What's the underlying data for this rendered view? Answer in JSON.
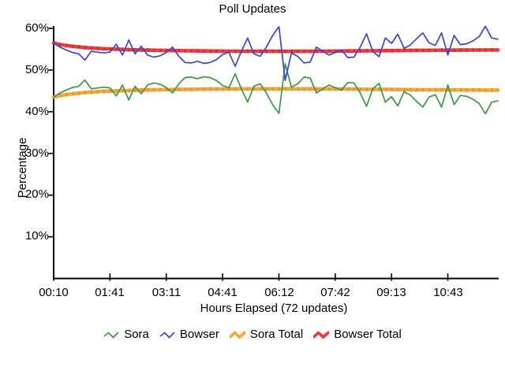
{
  "title": "Poll Updates",
  "x_axis": {
    "label": "Hours Elapsed (72 updates)"
  },
  "y_axis": {
    "label": "Percentage"
  },
  "chart_data": {
    "type": "line",
    "title": "Poll Updates",
    "xlabel": "Hours Elapsed (72 updates)",
    "ylabel": "Percentage",
    "updates": 72,
    "ylim": [
      0,
      60
    ],
    "grid": false,
    "legend_position": "bottom",
    "axis_color": "#000000",
    "y_ticks": [
      10,
      20,
      30,
      40,
      50,
      60
    ],
    "y_tick_labels": [
      "10%",
      "20%",
      "30%",
      "40%",
      "50%",
      "60%"
    ],
    "x_tick_updates": [
      1,
      10,
      19,
      28,
      37,
      46,
      55,
      64
    ],
    "x_tick_labels": [
      "00:10",
      "01:41",
      "03:11",
      "04:41",
      "06:12",
      "07:42",
      "09:13",
      "10:43"
    ],
    "series": [
      {
        "name": "Sora",
        "color": "#3f9745",
        "width": 1.7,
        "values": [
          43.5,
          44.5,
          45.2,
          45.8,
          46.1,
          47.6,
          45.5,
          45.7,
          45.9,
          45.7,
          43.8,
          46.4,
          42.8,
          46.1,
          44.3,
          46.4,
          46.9,
          46.6,
          45.8,
          44.5,
          46.7,
          48.2,
          48.3,
          47.9,
          48.4,
          48.2,
          47.5,
          46.3,
          45.7,
          49.1,
          45.5,
          42.3,
          46.1,
          46.7,
          44.5,
          41.7,
          39.6,
          51.5,
          45.9,
          46.7,
          48.3,
          48.1,
          44.5,
          45.5,
          46.4,
          45.8,
          45.2,
          47.0,
          46.9,
          44.5,
          41.3,
          45.5,
          46.8,
          42.3,
          43.6,
          41.4,
          44.8,
          44.0,
          42.5,
          41.1,
          43.5,
          44.1,
          41.1,
          46.4,
          41.7,
          43.9,
          43.7,
          43.0,
          42.0,
          39.5,
          42.3,
          42.6
        ]
      },
      {
        "name": "Bowser",
        "color": "#4143cf",
        "width": 1.7,
        "values": [
          56.5,
          55.5,
          54.8,
          54.2,
          53.9,
          52.4,
          54.5,
          54.3,
          54.1,
          54.3,
          56.2,
          53.6,
          57.2,
          53.9,
          55.7,
          53.6,
          53.1,
          53.4,
          54.2,
          55.5,
          53.3,
          51.8,
          51.7,
          52.1,
          51.6,
          51.8,
          52.5,
          53.7,
          54.3,
          50.9,
          54.5,
          57.7,
          53.9,
          53.3,
          55.5,
          58.3,
          60.4,
          47.5,
          54.1,
          53.3,
          51.7,
          51.9,
          55.5,
          54.5,
          53.6,
          54.2,
          54.8,
          53.0,
          53.1,
          55.5,
          58.7,
          54.5,
          53.2,
          57.7,
          56.4,
          58.6,
          55.2,
          56.0,
          57.5,
          58.9,
          56.5,
          55.9,
          58.9,
          53.6,
          58.3,
          56.1,
          56.3,
          57.0,
          58.0,
          60.5,
          57.7,
          57.4
        ]
      },
      {
        "name": "Sora Total",
        "color": "#f2a93c",
        "marker_color": "#e2922a",
        "width": 4.6,
        "values": [
          43.5,
          43.9,
          44.1,
          44.3,
          44.45,
          44.6,
          44.7,
          44.8,
          44.9,
          44.95,
          45.0,
          45.05,
          45.1,
          45.15,
          45.2,
          45.22,
          45.25,
          45.28,
          45.3,
          45.32,
          45.34,
          45.36,
          45.38,
          45.4,
          45.42,
          45.44,
          45.45,
          45.46,
          45.47,
          45.48,
          45.49,
          45.5,
          45.5,
          45.5,
          45.5,
          45.5,
          45.5,
          45.52,
          45.5,
          45.5,
          45.5,
          45.5,
          45.48,
          45.47,
          45.46,
          45.45,
          45.44,
          45.43,
          45.42,
          45.4,
          45.38,
          45.37,
          45.36,
          45.35,
          45.34,
          45.32,
          45.3,
          45.29,
          45.28,
          45.27,
          45.26,
          45.25,
          45.24,
          45.24,
          45.23,
          45.22,
          45.21,
          45.2,
          45.2,
          45.19,
          45.18,
          45.18
        ]
      },
      {
        "name": "Bowser Total",
        "color": "#e84040",
        "marker_color": "#d02c2c",
        "width": 4.6,
        "values": [
          56.5,
          56.1,
          55.9,
          55.7,
          55.55,
          55.4,
          55.3,
          55.2,
          55.1,
          55.05,
          55.0,
          54.95,
          54.9,
          54.85,
          54.8,
          54.78,
          54.75,
          54.72,
          54.7,
          54.68,
          54.66,
          54.64,
          54.62,
          54.6,
          54.58,
          54.56,
          54.55,
          54.54,
          54.53,
          54.52,
          54.51,
          54.5,
          54.5,
          54.5,
          54.5,
          54.5,
          54.5,
          54.48,
          54.5,
          54.5,
          54.5,
          54.5,
          54.52,
          54.53,
          54.54,
          54.55,
          54.56,
          54.57,
          54.58,
          54.6,
          54.62,
          54.63,
          54.64,
          54.65,
          54.66,
          54.68,
          54.7,
          54.71,
          54.72,
          54.73,
          54.74,
          54.75,
          54.76,
          54.76,
          54.77,
          54.78,
          54.79,
          54.8,
          54.8,
          54.81,
          54.82,
          54.82
        ]
      }
    ]
  }
}
